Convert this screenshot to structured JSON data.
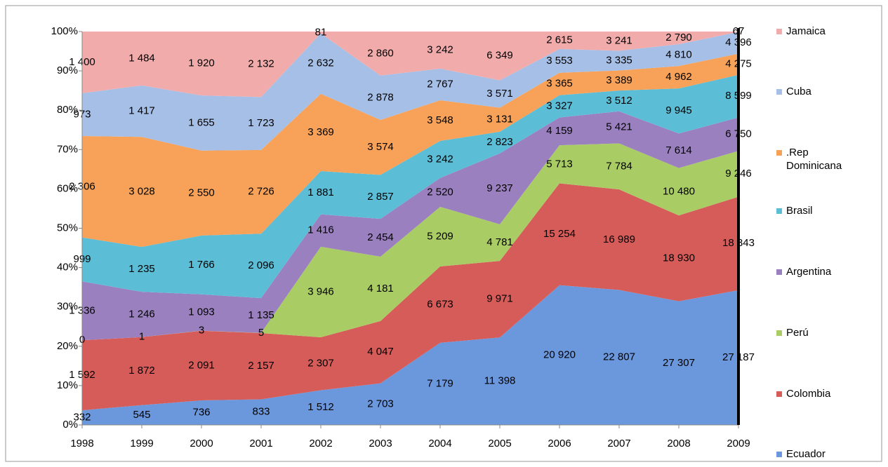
{
  "chart_data": {
    "type": "area",
    "stacked": "percent",
    "categories": [
      "1998",
      "1999",
      "2000",
      "2001",
      "2002",
      "2003",
      "2004",
      "2005",
      "2006",
      "2007",
      "2008",
      "2009"
    ],
    "ylim": [
      0,
      100
    ],
    "yticks": [
      {
        "value": 0,
        "label": "0%"
      },
      {
        "value": 10,
        "label": "10%"
      },
      {
        "value": 20,
        "label": "20%"
      },
      {
        "value": 30,
        "label": "30%"
      },
      {
        "value": 40,
        "label": "40%"
      },
      {
        "value": 50,
        "label": "50%"
      },
      {
        "value": 60,
        "label": "60%"
      },
      {
        "value": 70,
        "label": "70%"
      },
      {
        "value": 80,
        "label": "80%"
      },
      {
        "value": 90,
        "label": "90%"
      },
      {
        "value": 100,
        "label": "100%"
      }
    ],
    "legend": "right",
    "series": [
      {
        "name": "Ecuador",
        "color": "#6b97dc",
        "values": [
          332,
          545,
          736,
          833,
          1512,
          2703,
          7179,
          11398,
          20920,
          22807,
          27307,
          27187
        ],
        "value_labels": [
          "332",
          "545",
          "736",
          "833",
          "1 512",
          "2 703",
          "7 179",
          "11 398",
          "20 920",
          "22 807",
          "27 307",
          "27 187"
        ]
      },
      {
        "name": "Colombia",
        "color": "#d65c59",
        "values": [
          1592,
          1872,
          2091,
          2157,
          2307,
          4047,
          6673,
          9971,
          15254,
          16989,
          18930,
          18843
        ],
        "value_labels": [
          "1 592",
          "1 872",
          "2 091",
          "2 157",
          "2 307",
          "4 047",
          "6 673",
          "9 971",
          "15 254",
          "16 989",
          "18 930",
          "18 843"
        ]
      },
      {
        "name": "Perú",
        "color": "#a9cc64",
        "values": [
          0,
          1,
          3,
          5,
          3946,
          4181,
          5209,
          4781,
          5713,
          7784,
          10480,
          9246
        ],
        "value_labels": [
          "0",
          "1",
          "3",
          "5",
          "3 946",
          "4 181",
          "5 209",
          "4 781",
          "5 713",
          "7 784",
          "10 480",
          "9 246"
        ]
      },
      {
        "name": "Argentina",
        "color": "#9b80bf",
        "values": [
          1336,
          1246,
          1093,
          1135,
          1416,
          2454,
          2520,
          9237,
          4159,
          5421,
          7614,
          6750
        ],
        "value_labels": [
          "1 336",
          "1 246",
          "1 093",
          "1 135",
          "1 416",
          "2 454",
          "2 520",
          "9 237",
          "4 159",
          "5 421",
          "7 614",
          "6 750"
        ]
      },
      {
        "name": "Brasil",
        "color": "#5bbdd6",
        "values": [
          999,
          1235,
          1766,
          2096,
          1881,
          2857,
          3242,
          2823,
          3327,
          3512,
          9945,
          8599
        ],
        "value_labels": [
          "999",
          "1 235",
          "1 766",
          "2 096",
          "1 881",
          "2 857",
          "3 242",
          "2 823",
          "3 327",
          "3 512",
          "9 945",
          "8 599"
        ]
      },
      {
        "name": ".Rep Dominicana",
        "color": "#f7a258",
        "values": [
          2306,
          3028,
          2550,
          2726,
          3369,
          3574,
          3548,
          3131,
          3365,
          3389,
          4962,
          4275
        ],
        "value_labels": [
          "2 306",
          "3 028",
          "2 550",
          "2 726",
          "3 369",
          "3 574",
          "3 548",
          "3 131",
          "3 365",
          "3 389",
          "4 962",
          "4 275"
        ]
      },
      {
        "name": "Cuba",
        "color": "#a6bfe6",
        "values": [
          973,
          1417,
          1655,
          1723,
          2632,
          2878,
          2767,
          3571,
          3553,
          3335,
          4810,
          4396
        ],
        "value_labels": [
          "973",
          "1 417",
          "1 655",
          "1 723",
          "2 632",
          "2 878",
          "2 767",
          "3 571",
          "3 553",
          "3 335",
          "4 810",
          "4 396"
        ]
      },
      {
        "name": "Jamaica",
        "color": "#f2abab",
        "values": [
          1400,
          1484,
          1920,
          2132,
          81,
          2860,
          3242,
          6349,
          2615,
          3241,
          2790,
          67
        ],
        "value_labels": [
          "1 400",
          "1 484",
          "1 920",
          "2 132",
          "81",
          "2 860",
          "3 242",
          "6 349",
          "2 615",
          "3 241",
          "2 790",
          "67"
        ]
      }
    ]
  }
}
